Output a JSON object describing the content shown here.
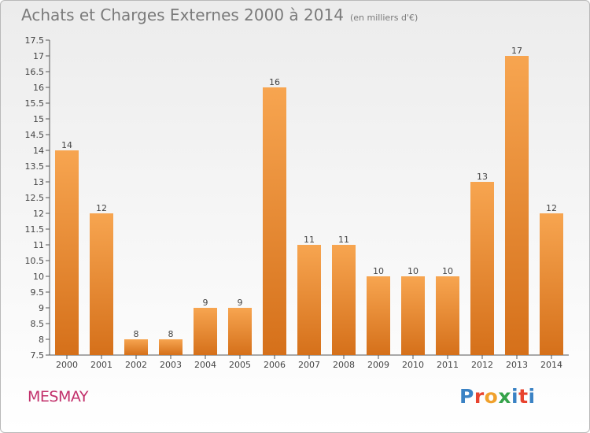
{
  "header": {
    "title": "Achats et Charges Externes 2000 à 2014",
    "unit": "(en milliers d'€)"
  },
  "footer": {
    "commune": "MESMAY",
    "logo_letters": [
      "P",
      "r",
      "o",
      "x",
      "i",
      "t",
      "i"
    ],
    "logo_colors": [
      "#3a82c4",
      "#e8432e",
      "#f0a12c",
      "#35a34a",
      "#3a82c4",
      "#e8432e",
      "#3a82c4"
    ]
  },
  "colors": {
    "bar_light": "#f7a550",
    "bar_dark": "#d5701a",
    "title": "#7a7a7a",
    "commune": "#c2306b"
  },
  "chart_data": {
    "type": "bar",
    "title": "Achats et Charges Externes 2000 à 2014",
    "xlabel": "",
    "ylabel": "",
    "categories": [
      "2000",
      "2001",
      "2002",
      "2003",
      "2004",
      "2005",
      "2006",
      "2007",
      "2008",
      "2009",
      "2010",
      "2011",
      "2012",
      "2013",
      "2014"
    ],
    "values": [
      14,
      12,
      8,
      8,
      9,
      9,
      16,
      11,
      11,
      10,
      10,
      10,
      13,
      17,
      12
    ],
    "labels": [
      "14",
      "12",
      "8",
      "8",
      "9",
      "9",
      "16",
      "11",
      "11",
      "10",
      "10",
      "10",
      "13",
      "17",
      "12"
    ],
    "ylim": [
      7.5,
      17.5
    ],
    "yticks": [
      7.5,
      8,
      8.5,
      9,
      9.5,
      10,
      10.5,
      11,
      11.5,
      12,
      12.5,
      13,
      13.5,
      14,
      14.5,
      15,
      15.5,
      16,
      16.5,
      17,
      17.5
    ],
    "ytick_labels": [
      "7.5",
      "8",
      "8.5",
      "9",
      "9.5",
      "10",
      "10.5",
      "11",
      "11.5",
      "12",
      "12.5",
      "13",
      "13.5",
      "14",
      "14.5",
      "15",
      "15.5",
      "16",
      "16.5",
      "17",
      "17.5"
    ],
    "grid": false,
    "legend": "none"
  }
}
